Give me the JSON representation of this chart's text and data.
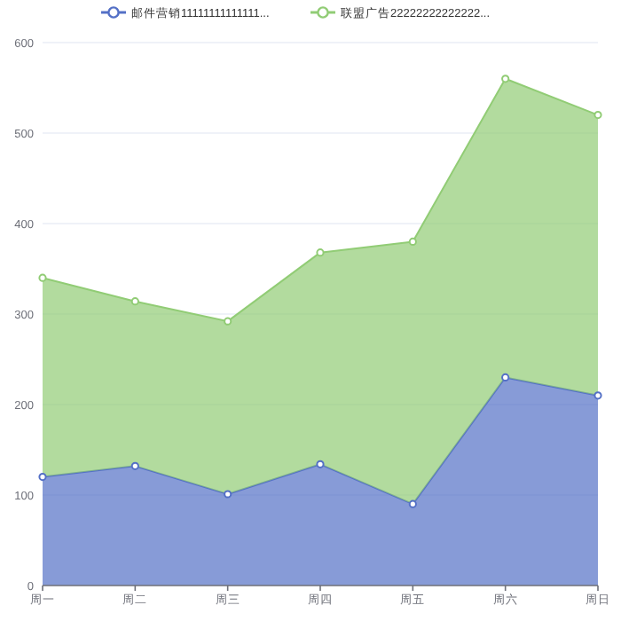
{
  "chart_data": {
    "type": "area",
    "stacked": true,
    "categories": [
      "周一",
      "周二",
      "周三",
      "周四",
      "周五",
      "周六",
      "周日"
    ],
    "series": [
      {
        "name": "邮件营销11111111111111...",
        "color": "#5470c6",
        "values": [
          120,
          132,
          101,
          134,
          90,
          230,
          210
        ]
      },
      {
        "name": "联盟广告22222222222222...",
        "color": "#91cc75",
        "values": [
          220,
          182,
          191,
          234,
          290,
          330,
          310
        ]
      }
    ],
    "ylim": [
      0,
      600
    ],
    "yticks": [
      0,
      100,
      200,
      300,
      400,
      500,
      600
    ],
    "grid": "y",
    "legend": "top",
    "marker": "circle"
  }
}
